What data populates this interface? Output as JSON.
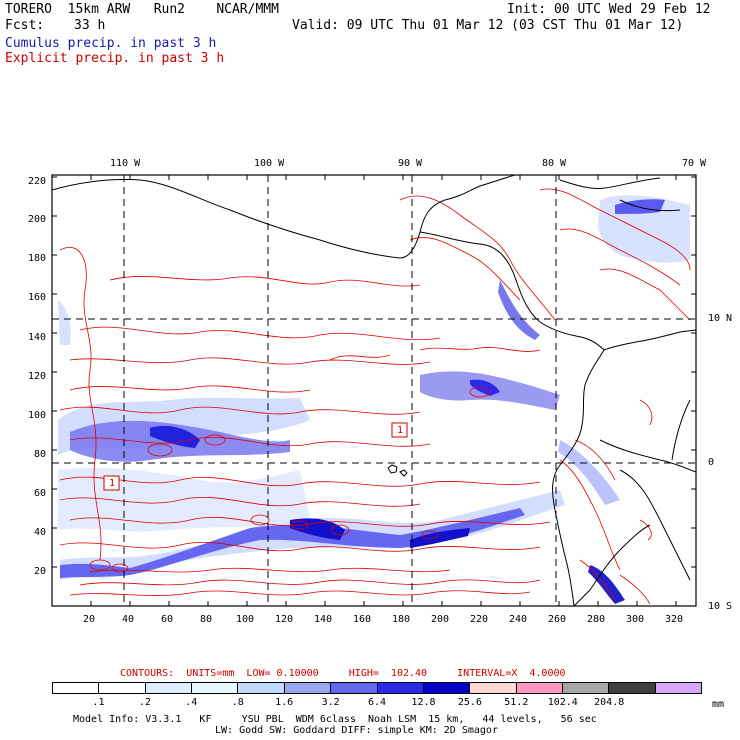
{
  "header": {
    "model": "TORERO  15km ARW   Run2    NCAR/MMM",
    "init": "Init: 00 UTC Wed 29 Feb 12",
    "fcst_label": "Fcst:",
    "fcst_value": "33 h",
    "valid": "Valid: 09 UTC Thu 01 Mar 12 (03 CST Thu 01 Mar 12)",
    "legend_cumulus": "Cumulus precip. in past 3 h",
    "legend_explicit": "Explicit precip. in past 3 h"
  },
  "map": {
    "lon_labels": [
      "110 W",
      "100 W",
      "90 W",
      "80 W",
      "70 W"
    ],
    "lat_labels": [
      "10 N",
      "0",
      "10 S"
    ],
    "y_ticks": [
      "220",
      "200",
      "180",
      "160",
      "140",
      "120",
      "100",
      "80",
      "60",
      "40",
      "20"
    ],
    "x_ticks": [
      "20",
      "40",
      "60",
      "80",
      "100",
      "120",
      "140",
      "160",
      "180",
      "200",
      "220",
      "240",
      "260",
      "280",
      "300",
      "320"
    ],
    "markers": [
      {
        "label": "1"
      },
      {
        "label": "1"
      }
    ],
    "colors": {
      "explicit_contour": "#dd0000",
      "grid": "#000000",
      "coast": "#000000"
    }
  },
  "contour_info": "CONTOURS:  UNITS=mm  LOW= 0.10000     HIGH=  102.40     INTERVAL=X  4.0000",
  "colorbar": {
    "colors": [
      "#ffffff",
      "#ffffff",
      "#ddeeff",
      "#e6faff",
      "#bfdcff",
      "#9aa6ee",
      "#6666ee",
      "#2a2aee",
      "#0000c8",
      "#ffd8d8",
      "#ff99c0",
      "#a6a6a6",
      "#404040",
      "#d8a8ff"
    ],
    "labels": [
      ".1",
      ".2",
      ".4",
      ".8",
      "1.6",
      "3.2",
      "6.4",
      "12.8",
      "25.6",
      "51.2",
      "102.4",
      "204.8"
    ],
    "units": "mm"
  },
  "footer": {
    "line1": "Model Info: V3.3.1   KF     YSU PBL  WDM 6class  Noah LSM  15 km,   44 levels,   56 sec",
    "line2": "LW: Godd SW: Goddard DIFF: simple KM: 2D Smagor"
  }
}
